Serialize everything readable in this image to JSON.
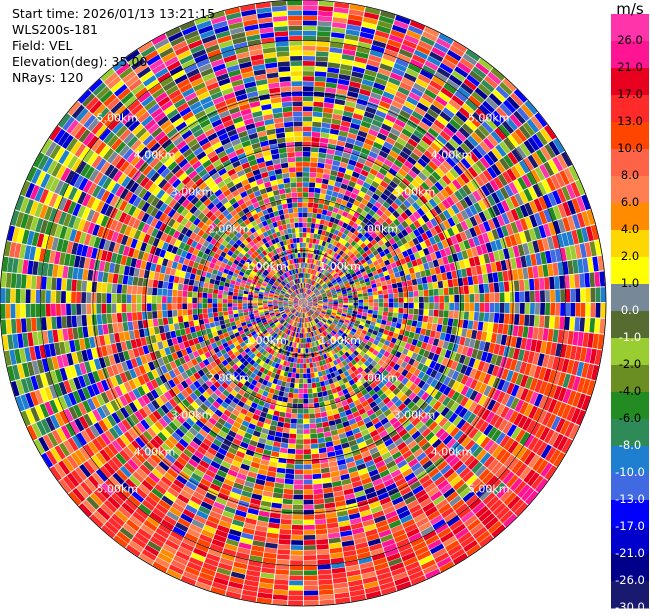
{
  "header": {
    "start_time": "Start time: 2026/01/13 13:21:15",
    "instrument": "WLS200s-181",
    "field": "Field: VEL",
    "elevation": "Elevation(deg): 35.00",
    "nrays": "NRays: 120"
  },
  "colorbar": {
    "unit": "m/s",
    "ticks": [
      "26.0",
      "21.0",
      "17.0",
      "13.0",
      "10.0",
      "8.0",
      "6.0",
      "4.0",
      "2.0",
      "1.0",
      "0.0",
      "-1.0",
      "-2.0",
      "-4.0",
      "-6.0",
      "-8.0",
      "-10.0",
      "-13.0",
      "-17.0",
      "-21.0",
      "-26.0",
      "-30.0"
    ],
    "colors": [
      "#ff33aa",
      "#ff1493",
      "#e8001e",
      "#ff2a2a",
      "#ff4500",
      "#ff6347",
      "#ff7f50",
      "#ff8c00",
      "#ffd700",
      "#ffff00",
      "#778899",
      "#556b2f",
      "#9acd32",
      "#6b8e23",
      "#228b22",
      "#2e8b57",
      "#1e7fd0",
      "#4169e1",
      "#0000ff",
      "#0000cd",
      "#00008b",
      "#191970"
    ]
  },
  "chart_data": {
    "type": "heatmap",
    "projection": "polar PPI",
    "field": "VEL",
    "units": "m/s",
    "n_rays": 120,
    "elevation_deg": 35.0,
    "range_rings_km": [
      1.0,
      2.0,
      3.0,
      4.0,
      5.0
    ],
    "range_ring_labels": [
      "1.00km",
      "2.00km",
      "3.00km",
      "4.00km",
      "5.00km"
    ],
    "value_range": [
      -30.0,
      30.0
    ],
    "pattern": "noisy velocity field; mostly random scatter, coherent positive (+13 to +21 m/s) region to the south/southeast and negative (-4 to -10 m/s) region to the west at far range"
  }
}
